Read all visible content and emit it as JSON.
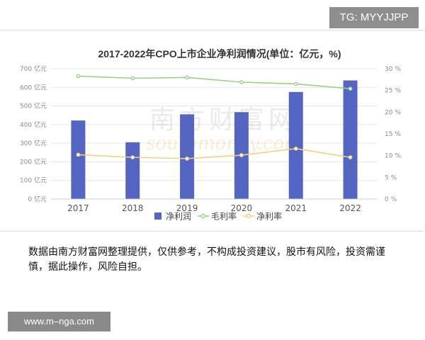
{
  "tg_badge": "TG: MYYJJPP",
  "site_badge": "www.m–nga.com",
  "note_text": "数据由南方财富网整理提供，仅供参考，不构成投资建议，股市有风险，投资需谨慎，据此操作，风险自担。",
  "watermark": {
    "cn": "南方财富网",
    "en": "southmoney.com"
  },
  "colors": {
    "bar": "#5566c2",
    "gross_margin": "#9ccf86",
    "net_margin": "#ecd27e"
  },
  "chart_data": {
    "type": "bar",
    "title": "2017-2022年CPO上市企业净利润情况(单位：亿元，%)",
    "categories": [
      "2017",
      "2018",
      "2019",
      "2020",
      "2021",
      "2022"
    ],
    "y_left": {
      "range": [
        0,
        700
      ],
      "ticks": [
        0,
        100,
        200,
        300,
        400,
        500,
        600,
        700
      ],
      "tick_labels": [
        "0 亿元",
        "100 亿元",
        "200 亿元",
        "300 亿元",
        "400 亿元",
        "500 亿元",
        "600 亿元",
        "700 亿元"
      ]
    },
    "y_right": {
      "range": [
        0,
        30
      ],
      "ticks": [
        0,
        5,
        10,
        15,
        20,
        25,
        30
      ],
      "tick_labels": [
        "0 %",
        "5 %",
        "10 %",
        "15 %",
        "20 %",
        "25 %",
        "30 %"
      ]
    },
    "grid": true,
    "legend_position": "bottom",
    "series": [
      {
        "name": "净利润",
        "type": "bar",
        "axis": "left",
        "values": [
          422,
          305,
          455,
          467,
          575,
          637
        ]
      },
      {
        "name": "毛利率",
        "type": "line",
        "axis": "right",
        "values": [
          28.3,
          27.8,
          28.0,
          26.9,
          26.5,
          25.4
        ]
      },
      {
        "name": "净利率",
        "type": "line",
        "axis": "right",
        "values": [
          10.2,
          9.6,
          9.3,
          10.1,
          11.6,
          9.6
        ]
      }
    ]
  }
}
